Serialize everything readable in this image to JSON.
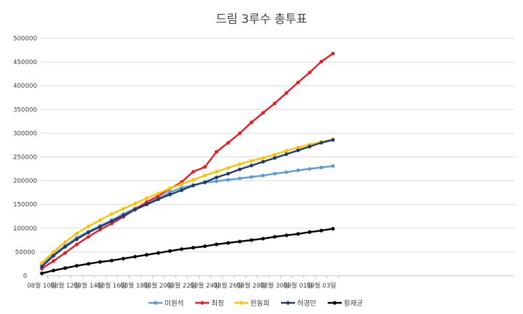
{
  "chart_data": {
    "type": "line",
    "title": "드림 3루수 총투표",
    "xlabel": "",
    "ylabel": "",
    "ylim": [
      0,
      500000
    ],
    "yticks": [
      0,
      50000,
      100000,
      150000,
      200000,
      250000,
      300000,
      350000,
      400000,
      450000,
      500000
    ],
    "grid": true,
    "legend": "bottom",
    "x": [
      "08월 10일",
      "08월 11일",
      "08월 12일",
      "08월 13일",
      "08월 14일",
      "08월 15일",
      "08월 16일",
      "08월 17일",
      "08월 18일",
      "08월 19일",
      "08월 20일",
      "08월 21일",
      "08월 22일",
      "08월 23일",
      "08월 24일",
      "08월 25일",
      "08월 26일",
      "08월 27일",
      "08월 28일",
      "08월 29일",
      "08월 30일",
      "08월 31일",
      "09월 01일",
      "09월 02일",
      "09월 03일",
      "09월 04일"
    ],
    "xtick_labels": [
      "08월 10일",
      "08월 12일",
      "08월 14일",
      "08월 16일",
      "08월 18일",
      "08월 20일",
      "08월 22일",
      "08월 24일",
      "08월 26일",
      "08월 28일",
      "08월 30일",
      "09월 01일",
      "09월 03일"
    ],
    "series": [
      {
        "name": "이원석",
        "color": "#5B9BD5",
        "values": [
          22000,
          45000,
          63000,
          80000,
          93000,
          105000,
          117000,
          130000,
          142000,
          152000,
          163000,
          176000,
          185000,
          191000,
          196000,
          199000,
          202000,
          205000,
          208000,
          211000,
          215000,
          218000,
          222000,
          225000,
          228000,
          231000
        ]
      },
      {
        "name": "최정",
        "color": "#E31E24",
        "values": [
          15000,
          31000,
          48000,
          66000,
          82000,
          97000,
          110000,
          124000,
          140000,
          155000,
          168000,
          183000,
          197000,
          219000,
          229000,
          261000,
          280000,
          300000,
          323000,
          343000,
          363000,
          385000,
          407000,
          428000,
          451000,
          468000
        ]
      },
      {
        "name": "한동희",
        "color": "#FFC000",
        "values": [
          27000,
          50000,
          71000,
          89000,
          104000,
          117000,
          130000,
          141000,
          152000,
          163000,
          173000,
          184000,
          193000,
          202000,
          211000,
          219000,
          227000,
          235000,
          242000,
          248000,
          255000,
          263000,
          270000,
          276000,
          282000,
          287000
        ]
      },
      {
        "name": "허경민",
        "color": "#1F3B73",
        "values": [
          19000,
          42000,
          61000,
          77000,
          91000,
          103000,
          115000,
          127000,
          139000,
          150000,
          161000,
          171000,
          180000,
          190000,
          197000,
          207000,
          215000,
          224000,
          232000,
          240000,
          248000,
          256000,
          264000,
          272000,
          280000,
          286000
        ]
      },
      {
        "name": "황재균",
        "color": "#000000",
        "values": [
          5000,
          11000,
          16000,
          21000,
          25000,
          29000,
          32000,
          36000,
          40000,
          44000,
          48000,
          52000,
          56000,
          59000,
          62000,
          66000,
          69000,
          72000,
          75000,
          78000,
          82000,
          85000,
          88000,
          92000,
          95000,
          99000
        ]
      }
    ]
  }
}
